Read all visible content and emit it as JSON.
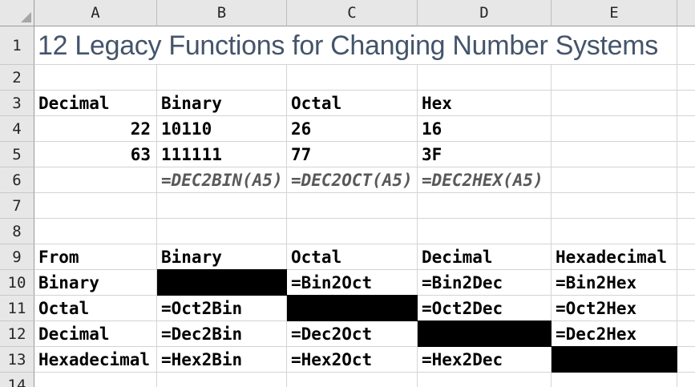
{
  "sheet": {
    "title_cell": "12 Legacy Functions for Changing Number Systems",
    "col_headers": [
      "A",
      "B",
      "C",
      "D",
      "E"
    ],
    "row_headers": [
      "1",
      "2",
      "3",
      "4",
      "5",
      "6",
      "7",
      "8",
      "9",
      "10",
      "11",
      "12",
      "13",
      "14"
    ],
    "cells": {
      "A3": "Decimal",
      "B3": "Binary",
      "C3": "Octal",
      "D3": "Hex",
      "A4": "22",
      "B4": "10110",
      "C4": "26",
      "D4": "16",
      "A5": "63",
      "B5": "111111",
      "C5": "77",
      "D5": "3F",
      "B6": "=DEC2BIN(A5)",
      "C6": "=DEC2OCT(A5)",
      "D6": "=DEC2HEX(A5)",
      "A9": "From",
      "B9": "Binary",
      "C9": "Octal",
      "D9": "Decimal",
      "E9": "Hexadecimal",
      "A10": "Binary",
      "C10": "=Bin2Oct",
      "D10": "=Bin2Dec",
      "E10": "=Bin2Hex",
      "A11": "Octal",
      "B11": "=Oct2Bin",
      "D11": "=Oct2Dec",
      "E11": "=Oct2Hex",
      "A12": "Decimal",
      "B12": "=Dec2Bin",
      "C12": "=Dec2Oct",
      "E12": "=Dec2Hex",
      "A13": "Hexadecimal",
      "B13": "=Hex2Bin",
      "C13": "=Hex2Oct",
      "D13": "=Hex2Dec"
    },
    "black_cells": [
      "B10",
      "C11",
      "D12",
      "E13"
    ],
    "icons": {
      "select_all": "select-all-triangle"
    },
    "colors": {
      "title_text": "#44546A",
      "formula_text": "#595959",
      "header_bg": "#E7E7E7",
      "header_border": "#9B9B9B",
      "gridline": "#D4D4D4",
      "blackout": "#000000",
      "cell_text": "#000000"
    }
  }
}
